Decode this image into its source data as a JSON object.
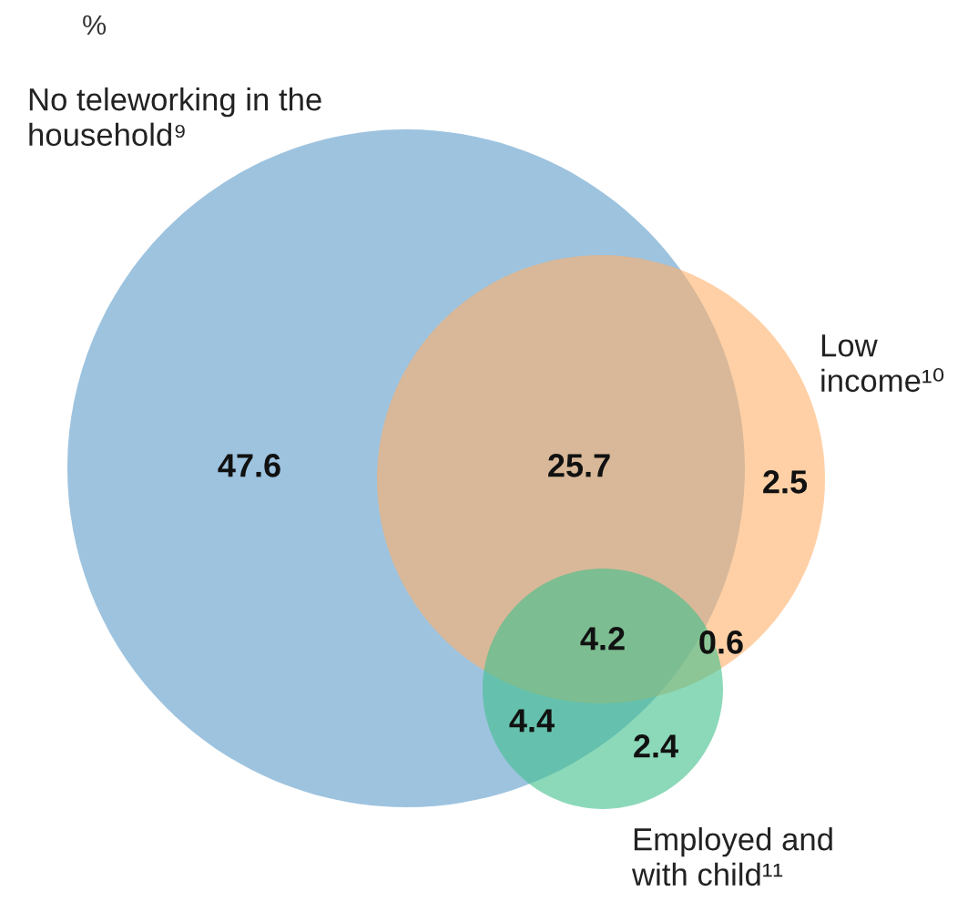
{
  "chart_data": {
    "type": "other",
    "ylabel": "%",
    "categories": [
      null,
      null,
      null,
      null,
      null,
      null,
      null
    ],
    "values": [
      47.6,
      25.7,
      2.5,
      4.2,
      0.6,
      4.4,
      2.4
    ],
    "annotations": [
      "No teleworking in the\nhousehold⁹",
      "Low\nincome¹⁰",
      "Employed and\nwith child¹¹"
    ],
    "data_labels": true
  }
}
